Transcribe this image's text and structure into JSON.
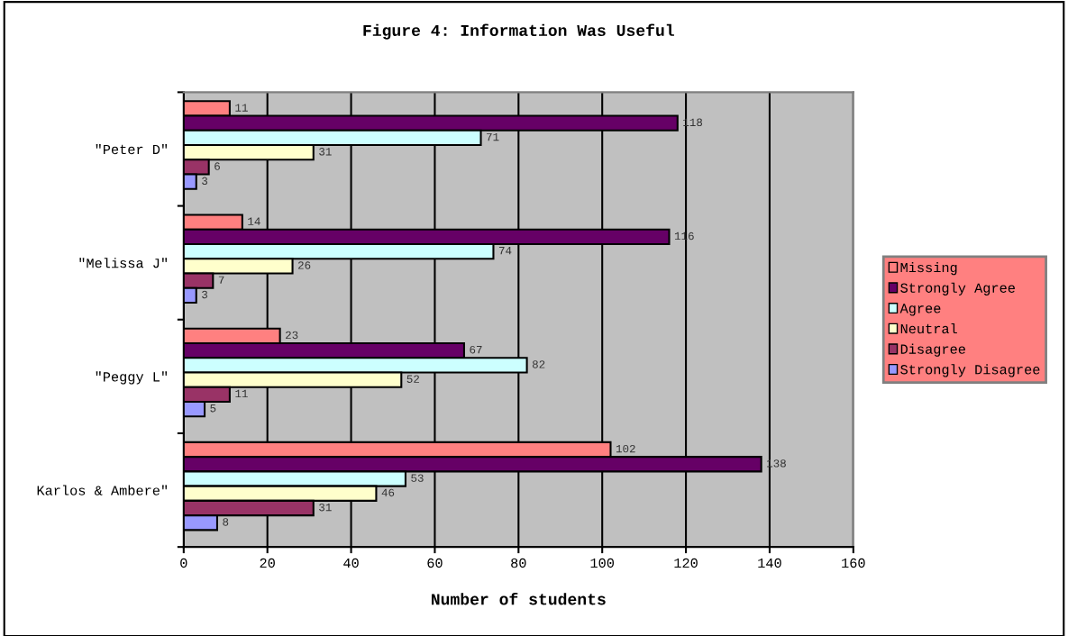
{
  "chart_data": {
    "type": "bar",
    "orientation": "horizontal",
    "title": "Figure 4: Information Was Useful",
    "xlabel": "Number of students",
    "categories": [
      "\"Peter D\"",
      "\"Melissa J\"",
      "\"Peggy L\"",
      "Karlos & Ambere\""
    ],
    "series": [
      {
        "name": "Missing",
        "color": "#ff8080",
        "values": [
          11,
          14,
          23,
          102
        ]
      },
      {
        "name": "Strongly Agree",
        "color": "#660066",
        "values": [
          118,
          116,
          67,
          138
        ]
      },
      {
        "name": "Agree",
        "color": "#ccffff",
        "values": [
          71,
          74,
          82,
          53
        ]
      },
      {
        "name": "Neutral",
        "color": "#ffffcc",
        "values": [
          31,
          26,
          52,
          46
        ]
      },
      {
        "name": "Disagree",
        "color": "#993366",
        "values": [
          6,
          7,
          11,
          31
        ]
      },
      {
        "name": "Strongly Disagree",
        "color": "#9999ff",
        "values": [
          3,
          3,
          5,
          8
        ]
      }
    ],
    "xlim": [
      0,
      160
    ],
    "xticks": [
      0,
      20,
      40,
      60,
      80,
      100,
      120,
      140,
      160
    ],
    "data_labels": true,
    "grid": "x",
    "legend": "right"
  }
}
